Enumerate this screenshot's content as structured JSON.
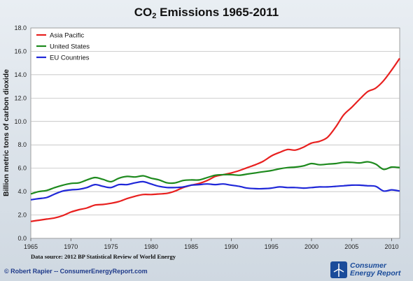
{
  "chart_data": {
    "type": "line",
    "title_main": "CO",
    "title_sub": "2",
    "title_rest": " Emissions 1965-2011",
    "ylabel": "Billion metric tons of carbon dioxide",
    "xlabel": "",
    "xlim": [
      1965,
      2011
    ],
    "ylim": [
      0,
      18
    ],
    "x_ticks": [
      1965,
      1970,
      1975,
      1980,
      1985,
      1990,
      1995,
      2000,
      2005,
      2010
    ],
    "y_ticks": [
      "0.0",
      "2.0",
      "4.0",
      "6.0",
      "8.0",
      "10.0",
      "12.0",
      "14.0",
      "16.0",
      "18.0"
    ],
    "grid": "horizontal",
    "legend_position": "top-left",
    "x": [
      1965,
      1966,
      1967,
      1968,
      1969,
      1970,
      1971,
      1972,
      1973,
      1974,
      1975,
      1976,
      1977,
      1978,
      1979,
      1980,
      1981,
      1982,
      1983,
      1984,
      1985,
      1986,
      1987,
      1988,
      1989,
      1990,
      1991,
      1992,
      1993,
      1994,
      1995,
      1996,
      1997,
      1998,
      1999,
      2000,
      2001,
      2002,
      2003,
      2004,
      2005,
      2006,
      2007,
      2008,
      2009,
      2010,
      2011
    ],
    "series": [
      {
        "name": "Asia Pacific",
        "color": "#e8201f",
        "values": [
          1.45,
          1.55,
          1.65,
          1.75,
          1.95,
          2.25,
          2.45,
          2.6,
          2.85,
          2.9,
          3.0,
          3.15,
          3.4,
          3.6,
          3.75,
          3.75,
          3.8,
          3.85,
          4.05,
          4.35,
          4.55,
          4.7,
          4.95,
          5.3,
          5.45,
          5.6,
          5.8,
          6.05,
          6.3,
          6.6,
          7.05,
          7.35,
          7.6,
          7.55,
          7.8,
          8.15,
          8.3,
          8.65,
          9.5,
          10.55,
          11.2,
          11.9,
          12.55,
          12.85,
          13.5,
          14.4,
          15.4
        ]
      },
      {
        "name": "United States",
        "color": "#1e8a1e",
        "values": [
          3.8,
          4.0,
          4.1,
          4.35,
          4.55,
          4.7,
          4.75,
          5.0,
          5.2,
          5.05,
          4.85,
          5.15,
          5.3,
          5.25,
          5.35,
          5.15,
          5.0,
          4.75,
          4.75,
          4.95,
          5.0,
          5.0,
          5.2,
          5.4,
          5.45,
          5.45,
          5.4,
          5.5,
          5.6,
          5.7,
          5.8,
          5.95,
          6.05,
          6.1,
          6.2,
          6.4,
          6.3,
          6.35,
          6.4,
          6.5,
          6.5,
          6.45,
          6.55,
          6.35,
          5.9,
          6.1,
          6.05
        ]
      },
      {
        "name": "EU Countries",
        "color": "#1f27d8",
        "values": [
          3.3,
          3.4,
          3.5,
          3.8,
          4.05,
          4.15,
          4.2,
          4.35,
          4.6,
          4.45,
          4.35,
          4.6,
          4.6,
          4.75,
          4.85,
          4.65,
          4.45,
          4.35,
          4.35,
          4.4,
          4.55,
          4.6,
          4.65,
          4.6,
          4.65,
          4.55,
          4.45,
          4.3,
          4.25,
          4.25,
          4.3,
          4.4,
          4.35,
          4.35,
          4.3,
          4.35,
          4.4,
          4.4,
          4.45,
          4.5,
          4.55,
          4.55,
          4.5,
          4.45,
          4.05,
          4.15,
          4.05
        ]
      }
    ]
  },
  "footer": {
    "source": "Data source: 2012 BP Statistical Review of World Energy",
    "credit": "© Robert Rapier -- ConsumerEnergyReport.com",
    "logo_line1": "Consumer",
    "logo_line2": "Energy Report"
  }
}
